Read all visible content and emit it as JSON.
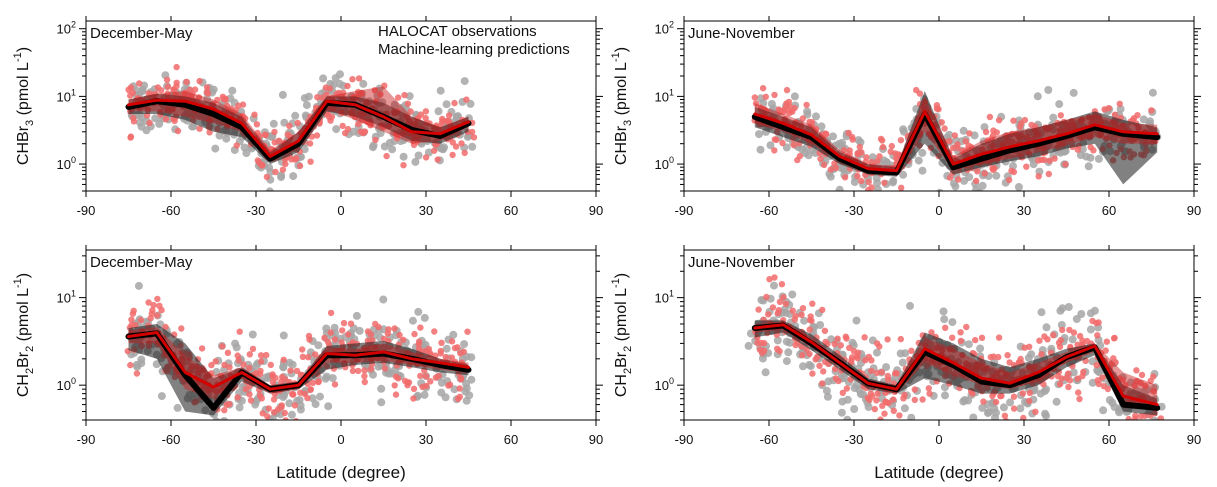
{
  "figure": {
    "xlabel": "Latitude (degree)"
  },
  "legend": {
    "observations": "HALOCAT observations",
    "predictions": "Machine-learning predictions"
  },
  "colors": {
    "observations_points": "#a6a6a6",
    "predictions_points": "#f26b6b",
    "observations_line": "#000000",
    "predictions_line": "#d40000",
    "legend_predictions_text": "#e8202a"
  },
  "chart_data": [
    {
      "type": "line",
      "panel": "top-left",
      "title": "December-May",
      "ylabel_main": "CHBr",
      "ylabel_sub": "3",
      "ylabel_unit": " (pmol L",
      "ylabel_sup": "-1",
      "ylabel_close": ")",
      "yscale": "log",
      "xlim": [
        -90,
        90
      ],
      "ylim": [
        0.4,
        130
      ],
      "xticks": [
        -90,
        -60,
        -30,
        0,
        30,
        60,
        90
      ],
      "yticks": [
        {
          "base": "10",
          "exp": "0",
          "value": 1
        },
        {
          "base": "10",
          "exp": "1",
          "value": 10
        },
        {
          "base": "10",
          "exp": "2",
          "value": 100
        }
      ],
      "legend_position": "top-center",
      "series": [
        {
          "name": "HALOCAT observations",
          "x": [
            -75,
            -65,
            -55,
            -45,
            -35,
            -25,
            -15,
            -5,
            5,
            15,
            25,
            35,
            45
          ],
          "y": [
            7,
            8.5,
            7.5,
            5.5,
            3.5,
            1.2,
            2.0,
            8.0,
            7.5,
            5.0,
            3.2,
            2.6,
            4.0
          ],
          "band_low": [
            5.5,
            5.5,
            4.5,
            3.0,
            2.5,
            1.0,
            1.5,
            6.0,
            5.0,
            3.5,
            2.2,
            2.0,
            3.0
          ],
          "band_high": [
            9,
            11,
            10,
            8,
            5,
            1.5,
            3.0,
            10,
            10,
            8,
            5,
            3.5,
            5.0
          ]
        },
        {
          "name": "Machine-learning predictions",
          "x": [
            -75,
            -65,
            -55,
            -45,
            -35,
            -25,
            -15,
            -5,
            5,
            15,
            25,
            35,
            45
          ],
          "y": [
            7.5,
            8.8,
            8.5,
            6.5,
            4.0,
            1.3,
            2.2,
            8.5,
            7.5,
            5.0,
            3.0,
            2.8,
            4.2
          ],
          "band_low": [
            6,
            6,
            5,
            4,
            3,
            1.1,
            1.7,
            6.5,
            4.5,
            3.0,
            2.0,
            2.2,
            3.5
          ],
          "band_high": [
            9,
            11,
            12,
            9,
            5.5,
            1.6,
            3.0,
            10,
            12,
            14,
            5.0,
            3.5,
            5.0
          ]
        }
      ]
    },
    {
      "type": "line",
      "panel": "top-right",
      "title": "June-November",
      "ylabel_main": "CHBr",
      "ylabel_sub": "3",
      "ylabel_unit": " (pmol L",
      "ylabel_sup": "-1",
      "ylabel_close": ")",
      "yscale": "log",
      "xlim": [
        -90,
        90
      ],
      "ylim": [
        0.4,
        130
      ],
      "xticks": [
        -90,
        -60,
        -30,
        0,
        30,
        60,
        90
      ],
      "yticks": [
        {
          "base": "10",
          "exp": "0",
          "value": 1
        },
        {
          "base": "10",
          "exp": "1",
          "value": 10
        },
        {
          "base": "10",
          "exp": "2",
          "value": 100
        }
      ],
      "series": [
        {
          "name": "HALOCAT observations",
          "x": [
            -65,
            -55,
            -45,
            -35,
            -25,
            -15,
            -5,
            5,
            15,
            25,
            35,
            45,
            55,
            65,
            77
          ],
          "y": [
            5.0,
            3.5,
            2.5,
            1.2,
            0.8,
            0.75,
            5.5,
            0.9,
            1.2,
            1.6,
            2.0,
            2.6,
            3.5,
            2.8,
            2.5
          ],
          "band_low": [
            3.5,
            2.5,
            1.8,
            1.0,
            0.7,
            0.65,
            2.0,
            0.7,
            0.9,
            1.1,
            1.3,
            1.7,
            2.0,
            0.5,
            1.5
          ],
          "band_high": [
            7,
            5,
            3.5,
            1.5,
            1.0,
            0.9,
            12,
            1.2,
            2.0,
            2.8,
            3.5,
            4.5,
            6.0,
            4.5,
            3.5
          ]
        },
        {
          "name": "Machine-learning predictions",
          "x": [
            -65,
            -55,
            -45,
            -35,
            -25,
            -15,
            -5,
            5,
            15,
            25,
            35,
            45,
            55,
            65,
            77
          ],
          "y": [
            5.5,
            4.0,
            2.7,
            1.3,
            0.85,
            0.8,
            6.0,
            1.0,
            1.4,
            1.8,
            2.2,
            2.8,
            3.8,
            3.0,
            2.8
          ],
          "band_low": [
            4.0,
            3.0,
            2.0,
            1.1,
            0.75,
            0.7,
            3.0,
            0.8,
            1.0,
            1.2,
            1.5,
            1.9,
            2.5,
            2.0,
            2.0
          ],
          "band_high": [
            8,
            5.5,
            3.8,
            1.6,
            1.0,
            0.95,
            10,
            1.3,
            2.2,
            3.0,
            3.5,
            4.5,
            5.5,
            4.0,
            3.8
          ]
        }
      ]
    },
    {
      "type": "line",
      "panel": "bottom-left",
      "title": "December-May",
      "ylabel_main": "CH",
      "ylabel_sub": "2",
      "ylabel_mid": "Br",
      "ylabel_sub2": "2",
      "ylabel_unit": " (pmol L",
      "ylabel_sup": "-1",
      "ylabel_close": ")",
      "yscale": "log",
      "xlim": [
        -90,
        90
      ],
      "ylim": [
        0.4,
        35
      ],
      "xticks": [
        -90,
        -60,
        -30,
        0,
        30,
        60,
        90
      ],
      "yticks": [
        {
          "base": "10",
          "exp": "0",
          "value": 1
        },
        {
          "base": "10",
          "exp": "1",
          "value": 10
        }
      ],
      "series": [
        {
          "name": "HALOCAT observations",
          "x": [
            -75,
            -65,
            -55,
            -45,
            -35,
            -25,
            -15,
            -5,
            5,
            15,
            25,
            35,
            45
          ],
          "y": [
            3.6,
            3.9,
            1.3,
            0.55,
            1.4,
            0.9,
            1.0,
            2.2,
            2.2,
            2.3,
            2.0,
            1.7,
            1.5
          ],
          "band_low": [
            2.5,
            2.0,
            0.5,
            0.45,
            1.1,
            0.8,
            0.9,
            1.5,
            1.7,
            1.8,
            1.6,
            1.4,
            1.3
          ],
          "band_high": [
            4.5,
            5.0,
            3.0,
            1.2,
            1.6,
            1.0,
            1.1,
            2.8,
            3.0,
            3.2,
            2.6,
            2.0,
            1.7
          ]
        },
        {
          "name": "Machine-learning predictions",
          "x": [
            -75,
            -65,
            -55,
            -45,
            -35,
            -25,
            -15,
            -5,
            5,
            15,
            25,
            35,
            45
          ],
          "y": [
            3.6,
            4.0,
            1.4,
            0.95,
            1.4,
            0.9,
            1.0,
            2.3,
            2.2,
            2.4,
            2.0,
            1.8,
            1.6
          ],
          "band_low": [
            3.0,
            3.0,
            0.9,
            0.7,
            1.2,
            0.8,
            0.9,
            1.8,
            1.8,
            1.9,
            1.7,
            1.5,
            1.4
          ],
          "band_high": [
            4.2,
            4.6,
            2.2,
            1.3,
            1.6,
            1.0,
            1.1,
            2.7,
            2.6,
            3.0,
            2.4,
            2.0,
            1.8
          ]
        }
      ]
    },
    {
      "type": "line",
      "panel": "bottom-right",
      "title": "June-November",
      "ylabel_main": "CH",
      "ylabel_sub": "2",
      "ylabel_mid": "Br",
      "ylabel_sub2": "2",
      "ylabel_unit": " (pmol L",
      "ylabel_sup": "-1",
      "ylabel_close": ")",
      "yscale": "log",
      "xlim": [
        -90,
        90
      ],
      "ylim": [
        0.4,
        35
      ],
      "xticks": [
        -90,
        -60,
        -30,
        0,
        30,
        60,
        90
      ],
      "yticks": [
        {
          "base": "10",
          "exp": "0",
          "value": 1
        },
        {
          "base": "10",
          "exp": "1",
          "value": 10
        }
      ],
      "series": [
        {
          "name": "HALOCAT observations",
          "x": [
            -65,
            -55,
            -45,
            -35,
            -25,
            -15,
            -5,
            5,
            15,
            25,
            35,
            45,
            55,
            65,
            77
          ],
          "y": [
            4.5,
            4.8,
            3.0,
            1.8,
            1.05,
            0.9,
            2.4,
            1.7,
            1.1,
            1.0,
            1.3,
            2.1,
            2.7,
            0.6,
            0.55
          ],
          "band_low": [
            3.5,
            4.0,
            2.5,
            1.5,
            0.9,
            0.8,
            1.2,
            1.0,
            0.8,
            0.8,
            1.0,
            1.6,
            2.2,
            0.5,
            0.45
          ],
          "band_high": [
            5.5,
            5.5,
            3.8,
            2.2,
            1.2,
            1.0,
            4.0,
            3.0,
            2.0,
            1.6,
            2.0,
            2.6,
            3.0,
            1.0,
            0.7
          ]
        },
        {
          "name": "Machine-learning predictions",
          "x": [
            -65,
            -55,
            -45,
            -35,
            -25,
            -15,
            -5,
            5,
            15,
            25,
            35,
            45,
            55,
            65,
            77
          ],
          "y": [
            4.5,
            4.9,
            3.1,
            1.8,
            1.05,
            0.9,
            2.6,
            1.8,
            1.2,
            1.05,
            1.4,
            2.1,
            2.8,
            0.75,
            0.6
          ],
          "band_low": [
            4.0,
            4.3,
            2.7,
            1.6,
            0.95,
            0.8,
            1.8,
            1.3,
            1.0,
            0.9,
            1.1,
            1.8,
            2.4,
            0.6,
            0.5
          ],
          "band_high": [
            5.0,
            5.4,
            3.5,
            2.0,
            1.15,
            1.0,
            3.5,
            2.6,
            1.8,
            1.4,
            1.8,
            2.4,
            3.0,
            1.4,
            1.0
          ]
        }
      ]
    }
  ]
}
